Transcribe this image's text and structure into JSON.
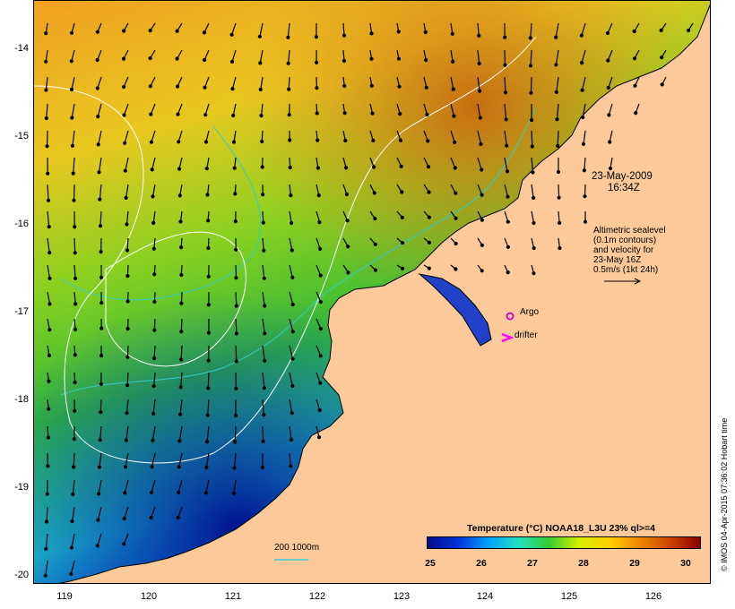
{
  "map": {
    "y_axis": [
      "-14",
      "-15",
      "-16",
      "-17",
      "-18",
      "-19",
      "-20"
    ],
    "x_axis": [
      "119",
      "120",
      "121",
      "122",
      "123",
      "124",
      "125",
      "126"
    ],
    "lon_range": [
      118.6,
      126.7
    ],
    "lat_range": [
      -20.1,
      -13.4
    ],
    "land_color": "#fcc99a",
    "coastline_color": "#000000",
    "contour_color": "#ffffff",
    "isobath_color": "#33cccc"
  },
  "annotations": {
    "date": "23-May-2009",
    "time": "16:34Z",
    "altimetry_lines": [
      "Altimetric sealevel",
      "(0.1m contours)",
      "and velocity for",
      "23-May 16Z",
      "0.5m/s (1kt 24h)"
    ],
    "argo_label": "Argo",
    "drifter_label": "drifter",
    "argo_marker_color": "#cc00cc",
    "drifter_marker_color": "#ff00ff",
    "isobath_scale": "200  1000m"
  },
  "colorbar": {
    "title": "Temperature (°C) NOAA18_L3U 23% ql>=4",
    "ticks": [
      "25",
      "26",
      "27",
      "28",
      "29",
      "30"
    ],
    "range": [
      25,
      30.4
    ],
    "stops": [
      "#000e8a",
      "#0032d8",
      "#00a0ff",
      "#22e0c0",
      "#33cc33",
      "#d4f000",
      "#ffd000",
      "#ee8800",
      "#cc4400",
      "#8a0000"
    ]
  },
  "credit": "© IMOS 04-Apr-2015 07:36:02 Hobart time"
}
